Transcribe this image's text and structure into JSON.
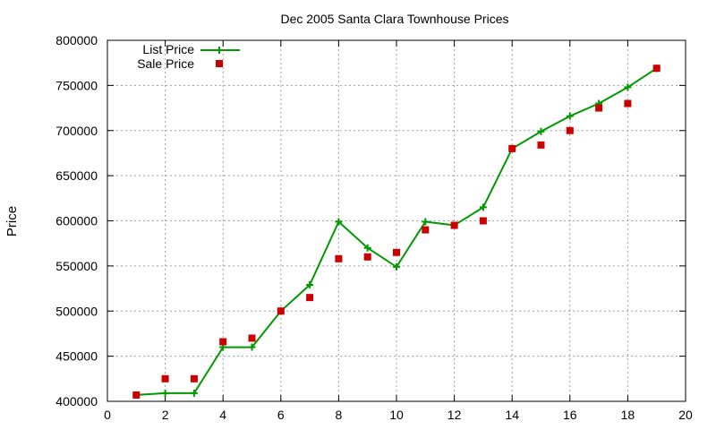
{
  "chart_data": {
    "type": "line",
    "title": "Dec 2005 Santa Clara Townhouse Prices",
    "xlabel": "",
    "ylabel": "Price",
    "xlim": [
      0,
      20
    ],
    "ylim": [
      400000,
      800000
    ],
    "x_ticks": [
      0,
      2,
      4,
      6,
      8,
      10,
      12,
      14,
      16,
      18,
      20
    ],
    "y_ticks": [
      400000,
      450000,
      500000,
      550000,
      600000,
      650000,
      700000,
      750000,
      800000
    ],
    "grid": true,
    "legend_position": "top-left",
    "series": [
      {
        "name": "List Price",
        "style": "linespoints",
        "marker": "plus",
        "color": "#009900",
        "x": [
          1,
          2,
          3,
          4,
          5,
          6,
          7,
          8,
          9,
          10,
          11,
          12,
          13,
          14,
          15,
          16,
          17,
          18,
          19
        ],
        "values": [
          407000,
          409000,
          409000,
          460000,
          460000,
          500000,
          529000,
          599000,
          570000,
          549000,
          599000,
          595000,
          615000,
          680000,
          699000,
          716000,
          730000,
          748000,
          769000
        ]
      },
      {
        "name": "Sale Price",
        "style": "points",
        "marker": "square",
        "color": "#cc0000",
        "x": [
          1,
          2,
          3,
          4,
          5,
          6,
          7,
          8,
          9,
          10,
          11,
          12,
          13,
          14,
          15,
          16,
          17,
          18,
          19
        ],
        "values": [
          407000,
          425000,
          425000,
          466000,
          470000,
          500000,
          515000,
          558000,
          560000,
          565000,
          590000,
          595000,
          600000,
          680000,
          684000,
          700000,
          725000,
          730000,
          769000
        ]
      }
    ]
  }
}
